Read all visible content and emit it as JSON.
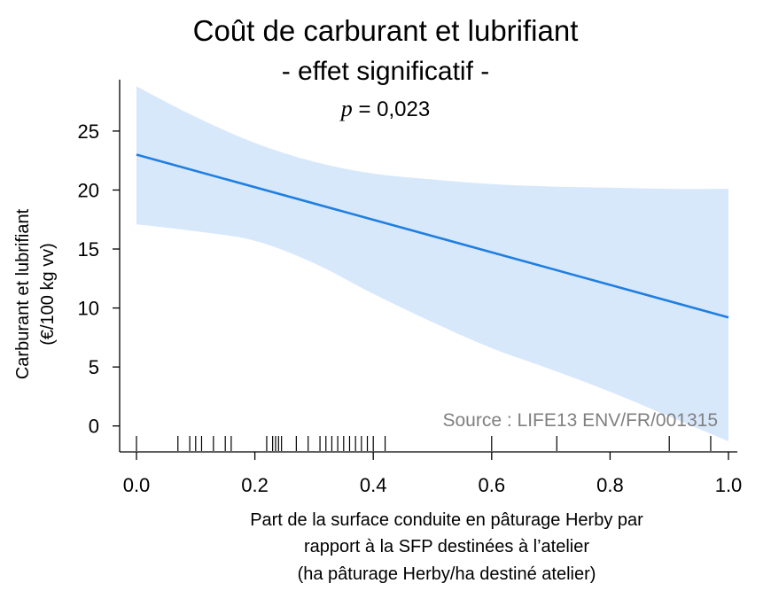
{
  "chart_data": {
    "type": "line",
    "title_line1": "Coût de carburant et lubrifiant",
    "title_line2": "- effet significatif -",
    "pvalue_label": "p",
    "pvalue_text": " = 0,023",
    "ylabel_line1": "Carburant et lubrifiant",
    "ylabel_line2": "(€/100 kg vv)",
    "xlabel_lines": [
      "Part de la surface conduite en pâturage Herby par",
      "rapport à la SFP destinées à l’atelier",
      "(ha pâturage Herby/ha destiné atelier)"
    ],
    "annotation": "Source : LIFE13 ENV/FR/001315",
    "xlim": [
      0,
      1.0
    ],
    "ylim": [
      -2.2,
      29.5
    ],
    "xticks": [
      0.0,
      0.2,
      0.4,
      0.6,
      0.8,
      1.0
    ],
    "xtick_labels": [
      "0.0",
      "0.2",
      "0.4",
      "0.6",
      "0.8",
      "1.0"
    ],
    "yticks": [
      0,
      5,
      10,
      15,
      20,
      25
    ],
    "ytick_labels": [
      "0",
      "5",
      "10",
      "15",
      "20",
      "25"
    ],
    "fit_line": {
      "x": [
        0.0,
        1.0
      ],
      "y": [
        23.0,
        9.2
      ]
    },
    "confidence_band": {
      "x": [
        0.0,
        0.1,
        0.2,
        0.3,
        0.4,
        0.5,
        0.6,
        0.7,
        0.8,
        0.9,
        1.0
      ],
      "upper": [
        28.8,
        26.2,
        24.0,
        22.4,
        21.4,
        20.9,
        20.5,
        20.3,
        20.2,
        20.1,
        20.1
      ],
      "lower": [
        17.1,
        16.5,
        15.7,
        13.8,
        11.2,
        8.8,
        6.6,
        4.8,
        2.9,
        0.8,
        -1.3
      ]
    },
    "rug_x": [
      0.0,
      0.07,
      0.09,
      0.1,
      0.11,
      0.13,
      0.15,
      0.16,
      0.22,
      0.23,
      0.235,
      0.24,
      0.245,
      0.27,
      0.29,
      0.31,
      0.32,
      0.33,
      0.34,
      0.35,
      0.36,
      0.37,
      0.38,
      0.39,
      0.4,
      0.42,
      0.6,
      0.71,
      0.9,
      0.97
    ],
    "colors": {
      "line": "#1f7fe0",
      "band": "#d8e8fb",
      "axis": "#000000",
      "annotation": "#808080"
    },
    "grid": false,
    "legend": "none"
  }
}
